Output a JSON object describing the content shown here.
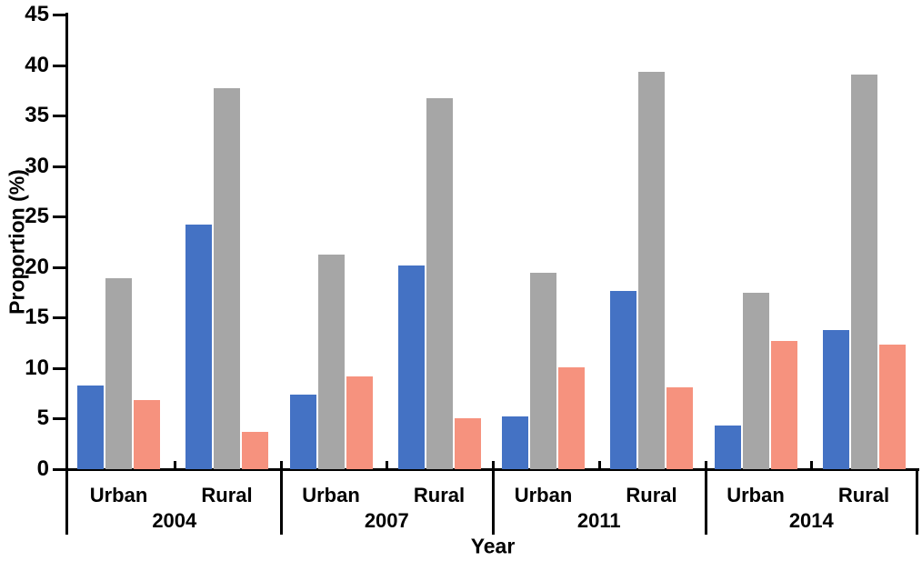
{
  "chart_data": {
    "type": "bar",
    "title": "",
    "xlabel": "Year",
    "ylabel": "Proportion (%)",
    "ylim": [
      0,
      45
    ],
    "ytick_step": 5,
    "yticks": [
      0,
      5,
      10,
      15,
      20,
      25,
      30,
      35,
      40,
      45
    ],
    "grid": "off",
    "legend": "none",
    "groups": [
      "2004",
      "2007",
      "2011",
      "2014"
    ],
    "subgroups": [
      "Urban",
      "Rural"
    ],
    "categories": [
      "2004 Urban",
      "2004 Rural",
      "2007 Urban",
      "2007 Rural",
      "2011 Urban",
      "2011 Rural",
      "2014 Urban",
      "2014 Rural"
    ],
    "series": [
      {
        "name": "blue",
        "color": "#4472C4",
        "values": [
          8.3,
          24.2,
          7.4,
          20.2,
          5.2,
          17.6,
          4.3,
          13.8
        ]
      },
      {
        "name": "gray",
        "color": "#A6A6A6",
        "values": [
          18.9,
          37.7,
          21.2,
          36.7,
          19.4,
          39.3,
          17.5,
          39.1
        ]
      },
      {
        "name": "salmon",
        "color": "#F6927E",
        "values": [
          6.8,
          3.7,
          9.2,
          5.0,
          10.1,
          8.1,
          12.7,
          12.3
        ]
      }
    ],
    "axis_color": "#000000",
    "background_color": "#ffffff"
  }
}
